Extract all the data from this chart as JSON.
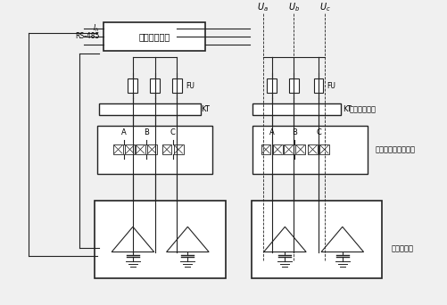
{
  "bg_color": "#f0f0f0",
  "line_color": "#222222",
  "labels": {
    "smart_unit": "智能测控单元",
    "FU": "FU",
    "KT": "KT",
    "line_protect": "线路保护单元",
    "thyristor": "可控硅复合开关电路",
    "capacitor": "电力电容器",
    "A": "A",
    "B": "B",
    "C": "C"
  }
}
